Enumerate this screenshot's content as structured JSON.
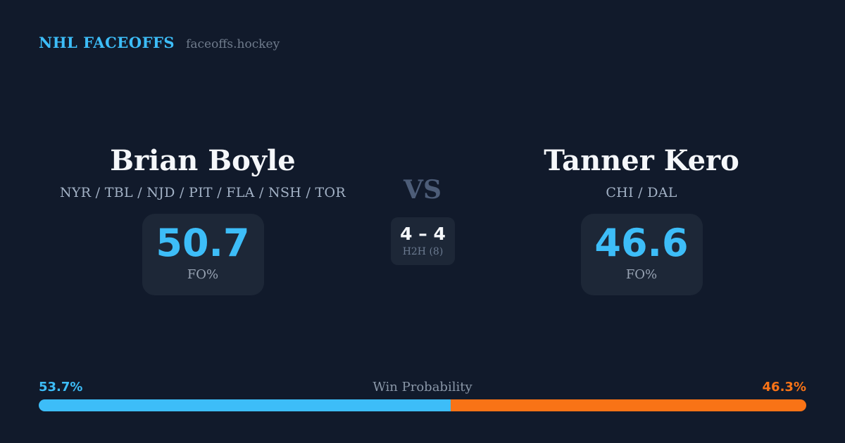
{
  "header": {
    "brand": "NHL FACEOFFS",
    "tagline": "faceoffs.hockey"
  },
  "matchup": {
    "vs_label": "VS",
    "h2h": {
      "score": "4 – 4",
      "label": "H2H (8)"
    },
    "players": [
      {
        "name": "Brian Boyle",
        "teams": "NYR / TBL / NJD / PIT / FLA / NSH / TOR",
        "fo_pct": "50.7",
        "fo_label": "FO%"
      },
      {
        "name": "Tanner Kero",
        "teams": "CHI / DAL",
        "fo_pct": "46.6",
        "fo_label": "FO%"
      }
    ]
  },
  "win_probability": {
    "label": "Win Probability",
    "left_pct_label": "53.7%",
    "right_pct_label": "46.3%",
    "left_value": 53.7,
    "right_value": 46.3
  },
  "colors": {
    "background": "#111a2b",
    "card": "#1d2737",
    "blue": "#3dbdf8",
    "orange": "#f97316"
  }
}
